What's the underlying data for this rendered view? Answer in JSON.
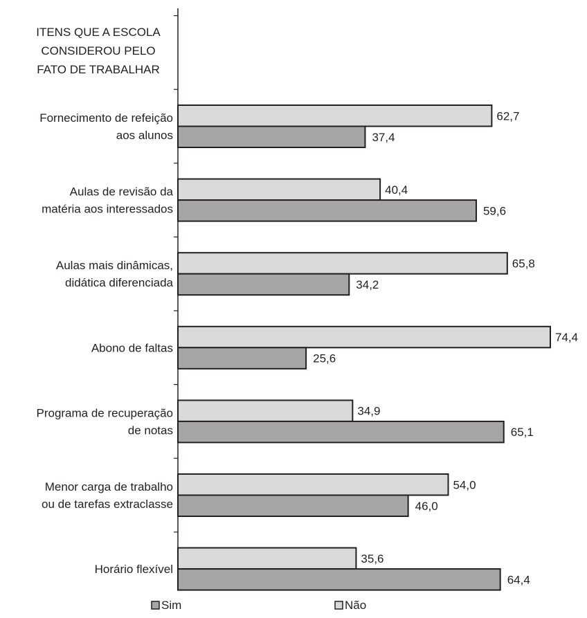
{
  "chart_data": {
    "type": "bar",
    "orientation": "horizontal",
    "axis_title": [
      "ITENS QUE A ESCOLA",
      "CONSIDEROU PELO",
      "FATO DE TRABALHAR"
    ],
    "categories": [
      [
        "Fornecimento de refeição",
        "aos alunos"
      ],
      [
        "Aulas de revisão da",
        "matéria aos interessados"
      ],
      [
        "Aulas mais dinâmicas,",
        "didática diferenciada"
      ],
      [
        "Abono de faltas"
      ],
      [
        "Programa de recuperação",
        "de notas"
      ],
      [
        "Menor carga de trabalho",
        "ou de tarefas extraclasse"
      ],
      [
        "Horário flexível"
      ]
    ],
    "series": [
      {
        "name": "Não",
        "color": "#d9d9d9",
        "values": [
          62.7,
          40.4,
          65.8,
          74.4,
          34.9,
          54.0,
          35.6
        ],
        "value_labels": [
          "62,7",
          "40,4",
          "65,8",
          "74,4",
          "34,9",
          "54,0",
          "35,6"
        ]
      },
      {
        "name": "Sim",
        "color": "#a6a6a6",
        "values": [
          37.4,
          59.6,
          34.2,
          25.6,
          65.1,
          46.0,
          64.4
        ],
        "value_labels": [
          "37,4",
          "59,6",
          "34,2",
          "25,6",
          "65,1",
          "46,0",
          "64,4"
        ]
      }
    ],
    "legend": {
      "placement": "bottom",
      "order": [
        "Sim",
        "Não"
      ]
    },
    "xlim": [
      0,
      74.4
    ],
    "grid": false
  }
}
